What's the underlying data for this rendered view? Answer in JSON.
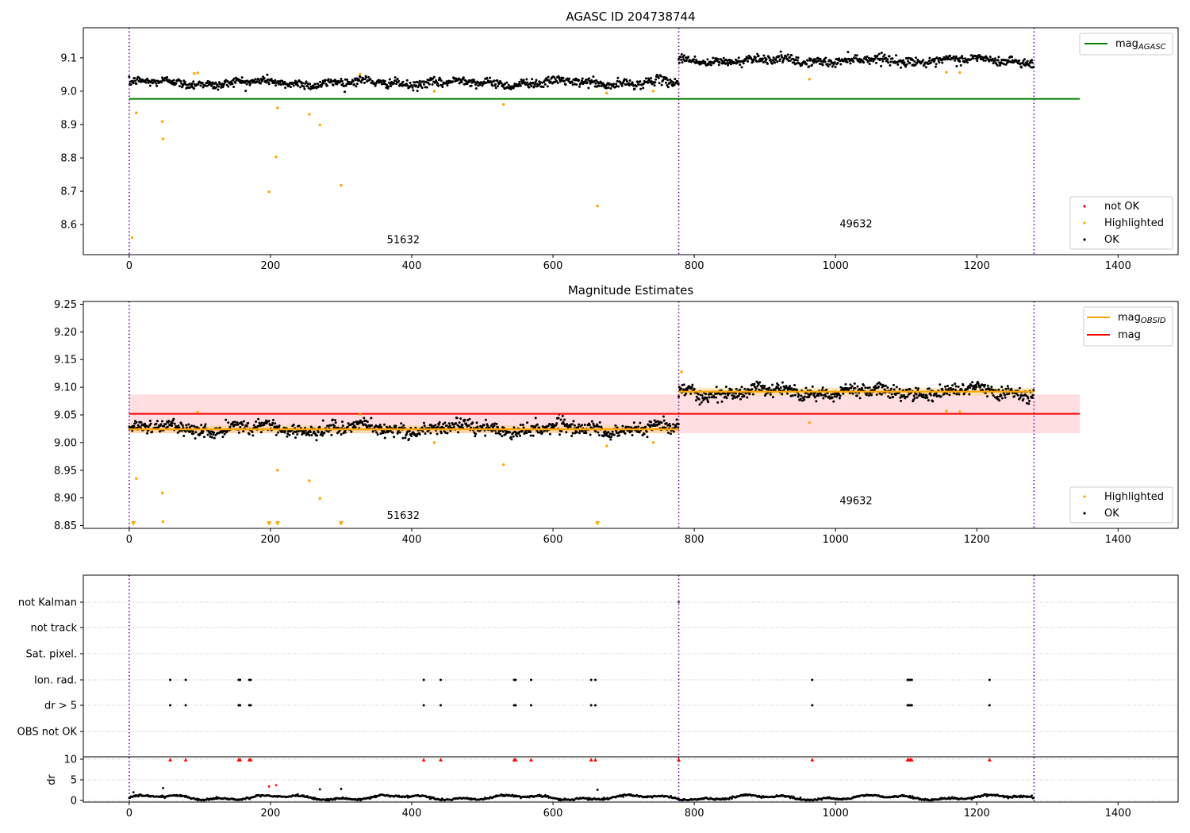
{
  "chart_data": [
    {
      "type": "scatter",
      "title": "AGASC ID 204738744",
      "xlim": [
        -65,
        1485
      ],
      "ylim": [
        8.51,
        9.19
      ],
      "xticks": [
        0,
        200,
        400,
        600,
        800,
        1000,
        1200,
        1400
      ],
      "yticks": [
        8.6,
        8.7,
        8.8,
        8.9,
        9.0,
        9.1
      ],
      "obs_boundaries": [
        0,
        778,
        1281
      ],
      "obs_labels": [
        {
          "x": 388,
          "y": 8.545,
          "text": "51632"
        },
        {
          "x": 1029,
          "y": 8.592,
          "text": "49632"
        }
      ],
      "lines": [
        {
          "name": "mag_AGASC",
          "color": "#008000",
          "x": [
            0,
            1346
          ],
          "y": [
            8.977,
            8.977
          ]
        }
      ],
      "ok_segments": [
        {
          "x_start": 0,
          "x_end": 778,
          "mean": 9.025,
          "spread": 0.012
        },
        {
          "x_start": 778,
          "x_end": 1281,
          "mean": 9.092,
          "spread": 0.012
        }
      ],
      "highlighted": {
        "x": [
          4,
          10,
          47,
          48,
          92,
          97,
          198,
          208,
          210,
          255,
          270,
          300,
          327,
          432,
          530,
          663,
          676,
          742,
          963,
          1157,
          1176
        ],
        "y": [
          8.561,
          8.935,
          8.909,
          8.857,
          9.053,
          9.055,
          8.698,
          8.803,
          8.95,
          8.931,
          8.899,
          8.718,
          9.051,
          9.0,
          8.96,
          8.656,
          8.994,
          9.0,
          9.036,
          9.057,
          9.056
        ]
      },
      "legend": [
        {
          "label": "not OK",
          "color": "#ff0000"
        },
        {
          "label": "Highlighted",
          "color": "#ffa500"
        },
        {
          "label": "OK",
          "color": "#000000"
        }
      ],
      "legend_line_label": "mag",
      "legend_line_sub": "AGASC",
      "grid": false
    },
    {
      "type": "scatter",
      "title": "Magnitude Estimates",
      "xlim": [
        -65,
        1485
      ],
      "ylim": [
        8.845,
        9.255
      ],
      "xticks": [
        0,
        200,
        400,
        600,
        800,
        1000,
        1200,
        1400
      ],
      "yticks": [
        8.85,
        8.9,
        8.95,
        9.0,
        9.05,
        9.1,
        9.15,
        9.2,
        9.25
      ],
      "ytick_labels": [
        "8.85",
        "8.90",
        "8.95",
        "9.00",
        "9.05",
        "9.10",
        "9.15",
        "9.20",
        "9.25"
      ],
      "obs_boundaries": [
        0,
        778,
        1281
      ],
      "obs_labels": [
        {
          "x": 388,
          "y": 8.862,
          "text": "51632"
        },
        {
          "x": 1029,
          "y": 8.889,
          "text": "49632"
        }
      ],
      "mag": {
        "value": 9.052,
        "band": [
          9.017,
          9.087
        ],
        "x": [
          0,
          1346
        ],
        "color": "#ff0000",
        "band_color": "#ffb6bf"
      },
      "mag_obsid": [
        {
          "x": [
            0,
            778
          ],
          "value": 9.024,
          "band": [
            9.017,
            9.031
          ]
        },
        {
          "x": [
            778,
            1281
          ],
          "value": 9.092,
          "band": [
            9.085,
            9.099
          ]
        }
      ],
      "ok_segments": [
        {
          "x_start": 0,
          "x_end": 778,
          "mean": 9.025,
          "spread": 0.011
        },
        {
          "x_start": 778,
          "x_end": 1281,
          "mean": 9.092,
          "spread": 0.011
        }
      ],
      "highlighted": {
        "x": [
          10,
          47,
          48,
          97,
          210,
          255,
          270,
          327,
          432,
          530,
          676,
          742,
          782,
          963,
          1157,
          1176
        ],
        "y": [
          8.935,
          8.909,
          8.857,
          9.055,
          8.95,
          8.931,
          8.899,
          9.051,
          9.0,
          8.96,
          8.994,
          9.0,
          9.128,
          9.036,
          9.057,
          9.056
        ]
      },
      "highlighted_clipped_x": [
        6,
        198,
        210,
        300,
        663
      ],
      "legend": [
        {
          "label": "Highlighted",
          "color": "#ffa500"
        },
        {
          "label": "OK",
          "color": "#000000"
        }
      ],
      "legend_lines": [
        {
          "label": "mag",
          "sub": "OBSID",
          "color": "#ffa500"
        },
        {
          "label": "mag",
          "sub": "",
          "color": "#ff0000"
        }
      ],
      "grid": false
    },
    {
      "type": "scatter",
      "title": "",
      "xlim": [
        -65,
        1485
      ],
      "xticks": [
        0,
        200,
        400,
        600,
        800,
        1000,
        1200,
        1400
      ],
      "flag_rows": [
        "not Kalman",
        "not track",
        "Sat. pixel.",
        "Ion. rad.",
        "dr > 5",
        "OBS not OK"
      ],
      "obs_boundaries": [
        0,
        778,
        1281
      ],
      "flags": {
        "not Kalman": [
          778
        ],
        "not track": [],
        "Sat. pixel.": [],
        "Ion. rad.": [
          58,
          80,
          155,
          157,
          170,
          172,
          417,
          441,
          545,
          547,
          569,
          654,
          660,
          967,
          1102,
          1104,
          1106,
          1108,
          1218
        ],
        "dr > 5": [
          58,
          80,
          155,
          157,
          170,
          172,
          417,
          441,
          545,
          547,
          569,
          654,
          660,
          967,
          1102,
          1104,
          1106,
          1108,
          1218
        ],
        "OBS not OK": []
      },
      "dr": {
        "ylim": [
          -0.5,
          10.5
        ],
        "yticks": [
          0,
          5,
          10
        ],
        "ylabel": "dr",
        "clipped_x": [
          58,
          80,
          155,
          157,
          170,
          172,
          417,
          441,
          545,
          547,
          569,
          654,
          660,
          778,
          967,
          1102,
          1104,
          1106,
          1108,
          1218
        ],
        "baseline": 0.7,
        "outliers": [
          {
            "x": 6,
            "y": 2.0
          },
          {
            "x": 47,
            "y": 1.2
          },
          {
            "x": 48,
            "y": 3.0
          },
          {
            "x": 198,
            "y": 3.4
          },
          {
            "x": 208,
            "y": 3.7
          },
          {
            "x": 270,
            "y": 2.7
          },
          {
            "x": 300,
            "y": 2.8
          },
          {
            "x": 663,
            "y": 2.6
          }
        ]
      },
      "grid": true
    }
  ]
}
